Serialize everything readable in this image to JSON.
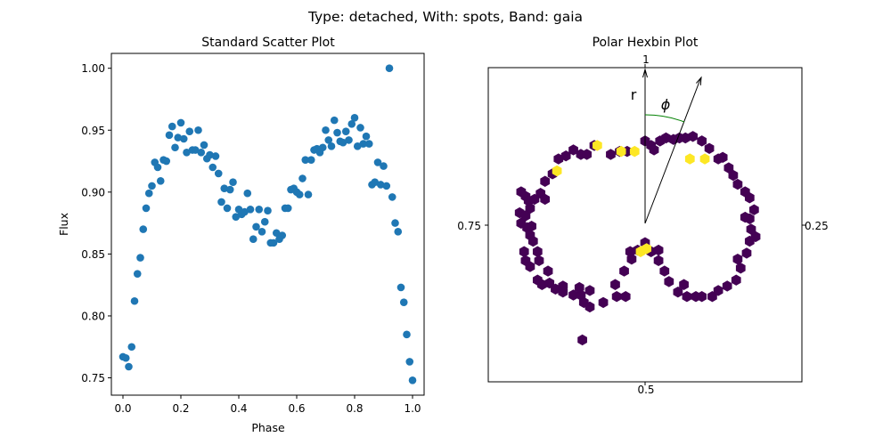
{
  "figure": {
    "suptitle": "Type: detached, With: spots, Band: gaia"
  },
  "chart_data": [
    {
      "type": "scatter",
      "title": "Standard Scatter Plot",
      "xlabel": "Phase",
      "ylabel": "Flux",
      "xlim": [
        -0.04,
        1.04
      ],
      "ylim": [
        0.736,
        1.012
      ],
      "xticks": [
        0.0,
        0.2,
        0.4,
        0.6,
        0.8,
        1.0
      ],
      "xtick_labels": [
        "0.0",
        "0.2",
        "0.4",
        "0.6",
        "0.8",
        "1.0"
      ],
      "yticks": [
        0.75,
        0.8,
        0.85,
        0.9,
        0.95,
        1.0
      ],
      "ytick_labels": [
        "0.75",
        "0.80",
        "0.85",
        "0.90",
        "0.95",
        "1.00"
      ],
      "grid": false,
      "marker_color": "#1f77b4",
      "x": [
        0.0,
        0.01,
        0.02,
        0.03,
        0.04,
        0.05,
        0.06,
        0.07,
        0.08,
        0.09,
        0.1,
        0.11,
        0.12,
        0.13,
        0.14,
        0.15,
        0.16,
        0.17,
        0.18,
        0.19,
        0.2,
        0.21,
        0.22,
        0.23,
        0.24,
        0.25,
        0.26,
        0.27,
        0.28,
        0.29,
        0.3,
        0.31,
        0.32,
        0.33,
        0.34,
        0.35,
        0.36,
        0.37,
        0.38,
        0.39,
        0.4,
        0.41,
        0.42,
        0.43,
        0.44,
        0.45,
        0.46,
        0.47,
        0.48,
        0.49,
        0.5,
        0.51,
        0.52,
        0.53,
        0.54,
        0.55,
        0.56,
        0.57,
        0.58,
        0.59,
        0.6,
        0.61,
        0.62,
        0.63,
        0.64,
        0.65,
        0.66,
        0.67,
        0.68,
        0.69,
        0.7,
        0.71,
        0.72,
        0.73,
        0.74,
        0.75,
        0.76,
        0.77,
        0.78,
        0.79,
        0.8,
        0.81,
        0.82,
        0.83,
        0.84,
        0.85,
        0.86,
        0.87,
        0.88,
        0.89,
        0.9,
        0.91,
        0.92,
        0.93,
        0.94,
        0.95,
        0.96,
        0.97,
        0.98,
        0.99,
        1.0
      ],
      "y": [
        0.767,
        0.766,
        0.759,
        0.775,
        0.812,
        0.834,
        0.847,
        0.87,
        0.887,
        0.899,
        0.905,
        0.924,
        0.92,
        0.909,
        0.926,
        0.925,
        0.946,
        0.953,
        0.936,
        0.944,
        0.956,
        0.943,
        0.932,
        0.949,
        0.934,
        0.934,
        0.95,
        0.932,
        0.938,
        0.927,
        0.93,
        0.92,
        0.929,
        0.915,
        0.892,
        0.903,
        0.887,
        0.902,
        0.908,
        0.88,
        0.886,
        0.882,
        0.884,
        0.899,
        0.886,
        0.862,
        0.872,
        0.886,
        0.868,
        0.876,
        0.885,
        0.859,
        0.859,
        0.867,
        0.862,
        0.865,
        0.887,
        0.887,
        0.902,
        0.903,
        0.9,
        0.898,
        0.911,
        0.926,
        0.898,
        0.926,
        0.934,
        0.935,
        0.932,
        0.936,
        0.95,
        0.942,
        0.937,
        0.958,
        0.948,
        0.941,
        0.94,
        0.949,
        0.942,
        0.955,
        0.96,
        0.937,
        0.952,
        0.939,
        0.945,
        0.939,
        0.906,
        0.908,
        0.924,
        0.906,
        0.921,
        0.905,
        1.0,
        0.896,
        0.875,
        0.868,
        0.823,
        0.811,
        0.785,
        0.763,
        0.748
      ]
    },
    {
      "type": "hexbin",
      "title": "Polar Hexbin Plot",
      "tick_labels": {
        "top": "1",
        "right": "0.25",
        "bottom": "0.5",
        "left": "0.75"
      },
      "r_label": "r",
      "phi_label": "ϕ",
      "low_color": "#440154",
      "high_color": "#fde725",
      "r_label_color": "#ff0000",
      "phi_label_color": "#008000",
      "xlim": [
        -1.05,
        1.05
      ],
      "ylim": [
        -1.05,
        1.05
      ],
      "cells": [
        [
          -0.83,
          0.22
        ],
        [
          -0.8,
          0.19
        ],
        [
          -0.78,
          0.16
        ],
        [
          -0.84,
          0.08
        ],
        [
          -0.83,
          0.01
        ],
        [
          -0.79,
          -0.02
        ],
        [
          -0.77,
          -0.07
        ],
        [
          -0.75,
          -0.11
        ],
        [
          -0.81,
          -0.18
        ],
        [
          -0.8,
          -0.24
        ],
        [
          -0.77,
          -0.28
        ],
        [
          -0.72,
          -0.37
        ],
        [
          -0.69,
          -0.4
        ],
        [
          -0.64,
          -0.39
        ],
        [
          -0.6,
          -0.43
        ],
        [
          -0.55,
          -0.45
        ],
        [
          -0.48,
          -0.47
        ],
        [
          -0.43,
          -0.47
        ],
        [
          -0.44,
          -0.42
        ],
        [
          -0.41,
          -0.52
        ],
        [
          -0.37,
          -0.55
        ],
        [
          -0.19,
          -0.48
        ],
        [
          -0.13,
          -0.48
        ],
        [
          -0.28,
          -0.52
        ],
        [
          -0.2,
          -0.4
        ],
        [
          -0.14,
          -0.31
        ],
        [
          -0.09,
          -0.23
        ],
        [
          -0.05,
          -0.17
        ],
        [
          -0.0,
          -0.12
        ],
        [
          0.04,
          -0.18
        ],
        [
          0.09,
          -0.24
        ],
        [
          0.13,
          -0.31
        ],
        [
          0.16,
          -0.38
        ],
        [
          0.22,
          -0.45
        ],
        [
          0.28,
          -0.48
        ],
        [
          0.34,
          -0.48
        ],
        [
          0.38,
          -0.48
        ],
        [
          0.45,
          -0.48
        ],
        [
          0.49,
          -0.44
        ],
        [
          0.55,
          -0.41
        ],
        [
          0.61,
          -0.37
        ],
        [
          0.64,
          -0.29
        ],
        [
          0.62,
          -0.23
        ],
        [
          0.68,
          -0.19
        ],
        [
          0.7,
          -0.11
        ],
        [
          0.74,
          -0.08
        ],
        [
          0.71,
          -0.03
        ],
        [
          0.7,
          0.04
        ],
        [
          0.73,
          0.1
        ],
        [
          0.7,
          0.18
        ],
        [
          0.67,
          0.22
        ],
        [
          0.62,
          0.27
        ],
        [
          0.59,
          0.33
        ],
        [
          0.56,
          0.38
        ],
        [
          0.49,
          0.44
        ],
        [
          0.43,
          0.51
        ],
        [
          0.38,
          0.56
        ],
        [
          0.32,
          0.59
        ],
        [
          0.27,
          0.58
        ],
        [
          0.23,
          0.58
        ],
        [
          0.19,
          0.57
        ],
        [
          0.14,
          0.58
        ],
        [
          0.1,
          0.56
        ],
        [
          0.04,
          0.53
        ],
        [
          -0.0,
          0.56
        ],
        [
          -0.12,
          0.49
        ],
        [
          -0.17,
          0.49
        ],
        [
          -0.23,
          0.47
        ],
        [
          -0.34,
          0.53
        ],
        [
          -0.43,
          0.47
        ],
        [
          -0.48,
          0.5
        ],
        [
          -0.53,
          0.46
        ],
        [
          -0.58,
          0.44
        ],
        [
          -0.62,
          0.34
        ],
        [
          -0.67,
          0.29
        ],
        [
          -0.7,
          0.21
        ],
        [
          -0.74,
          0.17
        ],
        [
          -0.77,
          0.11
        ],
        [
          -0.8,
          0.06
        ],
        [
          -0.76,
          -0.01
        ],
        [
          -0.72,
          -0.18
        ],
        [
          -0.65,
          -0.31
        ],
        [
          -0.55,
          -0.41
        ],
        [
          -0.37,
          -0.44
        ],
        [
          -0.1,
          -0.18
        ],
        [
          0.09,
          -0.17
        ],
        [
          0.26,
          -0.4
        ],
        [
          0.67,
          0.05
        ],
        [
          0.52,
          0.45
        ],
        [
          0.06,
          0.5
        ],
        [
          -0.39,
          0.47
        ],
        [
          -0.67,
          0.17
        ],
        [
          -0.71,
          -0.24
        ],
        [
          -0.42,
          -0.77
        ]
      ],
      "hot_cells": [
        [
          -0.59,
          0.36
        ],
        [
          -0.32,
          0.53
        ],
        [
          -0.16,
          0.49
        ],
        [
          -0.07,
          0.49
        ],
        [
          0.3,
          0.44
        ],
        [
          0.4,
          0.44
        ],
        [
          -0.03,
          -0.18
        ],
        [
          0.01,
          -0.16
        ]
      ]
    }
  ]
}
